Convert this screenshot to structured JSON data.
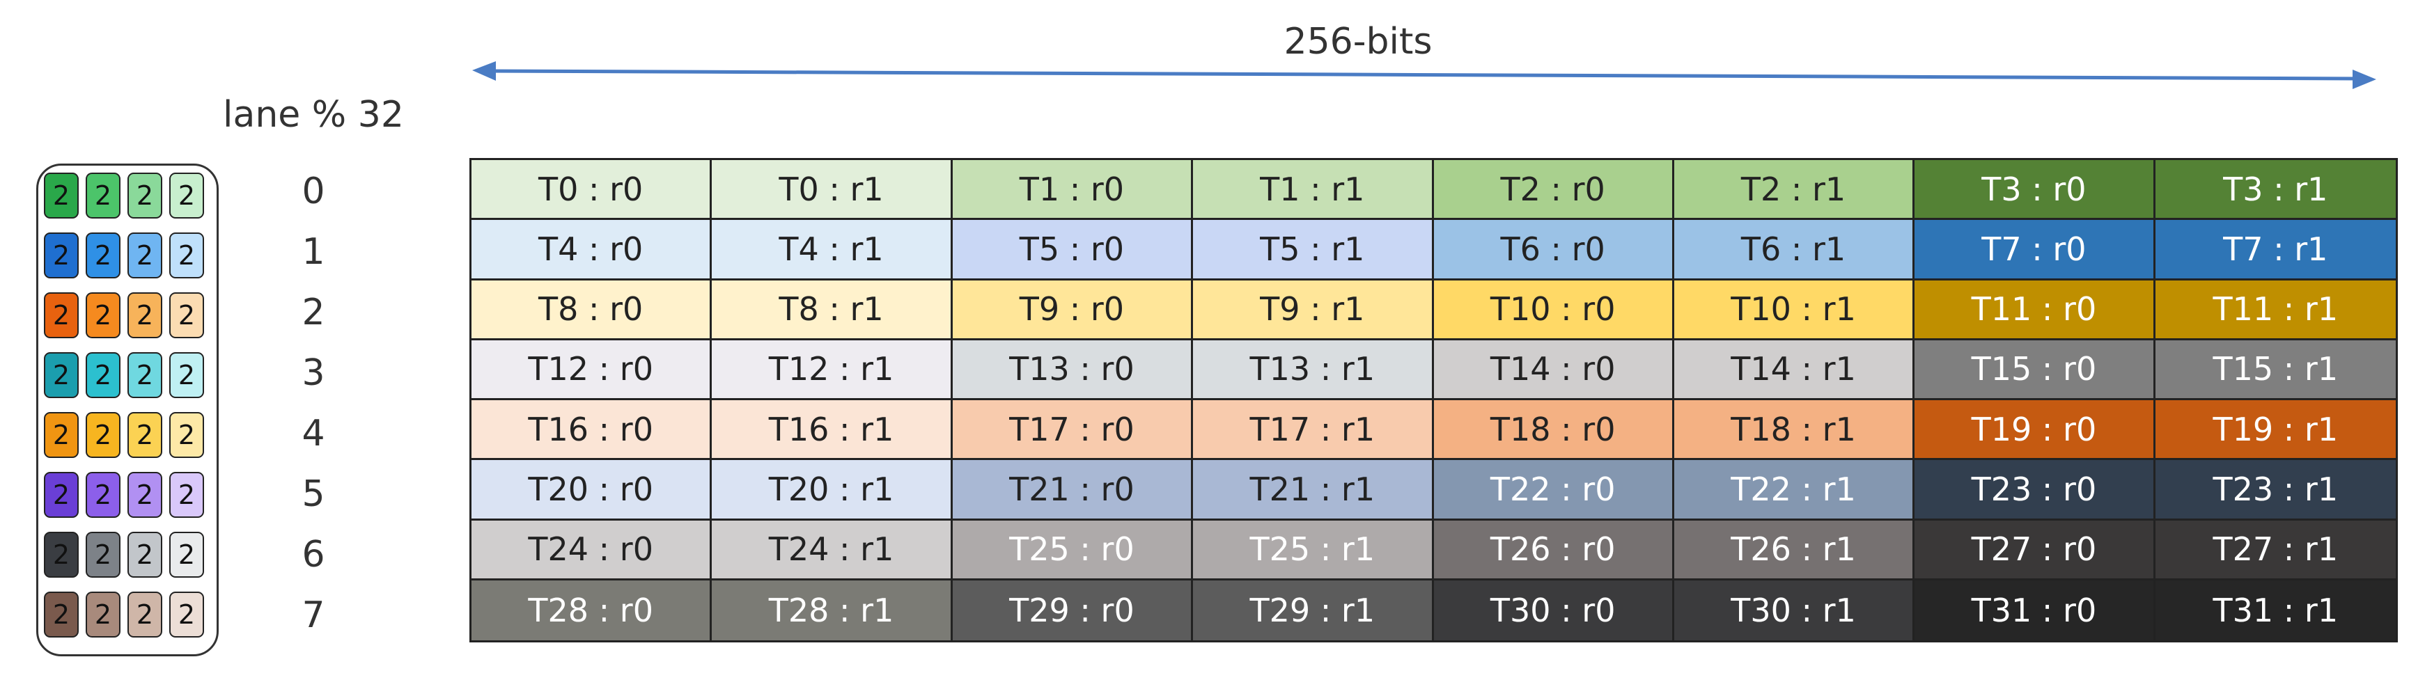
{
  "header": {
    "bits_label": "256-bits",
    "lane_label": "lane % 32"
  },
  "rows": [
    {
      "row": "0",
      "legend": [
        "2",
        "2",
        "2",
        "2"
      ],
      "cells": [
        "T0 : r0",
        "T0 : r1",
        "T1 : r0",
        "T1 : r1",
        "T2 : r0",
        "T2 : r1",
        "T3 : r0",
        "T3 : r1"
      ]
    },
    {
      "row": "1",
      "legend": [
        "2",
        "2",
        "2",
        "2"
      ],
      "cells": [
        "T4 : r0",
        "T4 : r1",
        "T5 : r0",
        "T5 : r1",
        "T6 : r0",
        "T6 : r1",
        "T7 : r0",
        "T7 : r1"
      ]
    },
    {
      "row": "2",
      "legend": [
        "2",
        "2",
        "2",
        "2"
      ],
      "cells": [
        "T8 : r0",
        "T8 : r1",
        "T9 : r0",
        "T9 : r1",
        "T10 : r0",
        "T10 : r1",
        "T11 : r0",
        "T11 : r1"
      ]
    },
    {
      "row": "3",
      "legend": [
        "2",
        "2",
        "2",
        "2"
      ],
      "cells": [
        "T12 : r0",
        "T12 : r1",
        "T13 : r0",
        "T13 : r1",
        "T14 : r0",
        "T14 : r1",
        "T15 : r0",
        "T15 : r1"
      ]
    },
    {
      "row": "4",
      "legend": [
        "2",
        "2",
        "2",
        "2"
      ],
      "cells": [
        "T16 : r0",
        "T16 : r1",
        "T17 : r0",
        "T17 : r1",
        "T18 : r0",
        "T18 : r1",
        "T19 : r0",
        "T19 : r1"
      ]
    },
    {
      "row": "5",
      "legend": [
        "2",
        "2",
        "2",
        "2"
      ],
      "cells": [
        "T20 : r0",
        "T20 : r1",
        "T21 : r0",
        "T21 : r1",
        "T22 : r0",
        "T22 : r1",
        "T23 : r0",
        "T23 : r1"
      ]
    },
    {
      "row": "6",
      "legend": [
        "2",
        "2",
        "2",
        "2"
      ],
      "cells": [
        "T24 : r0",
        "T24 : r1",
        "T25 : r0",
        "T25 : r1",
        "T26 : r0",
        "T26 : r1",
        "T27 : r0",
        "T27 : r1"
      ]
    },
    {
      "row": "7",
      "legend": [
        "2",
        "2",
        "2",
        "2"
      ],
      "cells": [
        "T28 : r0",
        "T28 : r1",
        "T29 : r0",
        "T29 : r1",
        "T30 : r0",
        "T30 : r1",
        "T31 : r0",
        "T31 : r1"
      ]
    }
  ],
  "colors": {
    "arrow": "#4a7cc4",
    "cell_shades": [
      [
        "#e2efda",
        "#c6e0b4",
        "#a9d08e",
        "#548235"
      ],
      [
        "#ddebf7",
        "#c9d7f5",
        "#9bc2e6",
        "#2e75b6"
      ],
      [
        "#fff2cc",
        "#ffe699",
        "#ffd966",
        "#bf8f00"
      ],
      [
        "#eeecf1",
        "#d9dde0",
        "#d0cece",
        "#7f7f7f"
      ],
      [
        "#fbe5d6",
        "#f8cbad",
        "#f4b183",
        "#c55a11"
      ],
      [
        "#dae3f3",
        "#a9b8d4",
        "#8497b0",
        "#323f4f"
      ],
      [
        "#d0cece",
        "#aeaaaa",
        "#767171",
        "#3a3838"
      ],
      [
        "#7b7b75",
        "#5c5c5c",
        "#3b3b3d",
        "#262626"
      ]
    ],
    "cell_text": [
      [
        "#222",
        "#222",
        "#222",
        "#ffffff"
      ],
      [
        "#222",
        "#222",
        "#222",
        "#ffffff"
      ],
      [
        "#222",
        "#222",
        "#222",
        "#ffffff"
      ],
      [
        "#222",
        "#222",
        "#222",
        "#ffffff"
      ],
      [
        "#222",
        "#222",
        "#222",
        "#ffffff"
      ],
      [
        "#222",
        "#222",
        "#ffffff",
        "#ffffff"
      ],
      [
        "#222",
        "#ffffff",
        "#ffffff",
        "#ffffff"
      ],
      [
        "#ffffff",
        "#ffffff",
        "#ffffff",
        "#ffffff"
      ]
    ],
    "legend_shades": [
      [
        "#2aa84a",
        "#4cc46a",
        "#8ad99a",
        "#c8efce"
      ],
      [
        "#1f6fd0",
        "#2f90e6",
        "#6fb5f2",
        "#bfe0fb"
      ],
      [
        "#e8620f",
        "#f58a1f",
        "#f7b35a",
        "#fbdcb2"
      ],
      [
        "#1b9eae",
        "#2cc0cf",
        "#6fd8e0",
        "#bff0f3"
      ],
      [
        "#f09512",
        "#f7b520",
        "#fbd253",
        "#fde9a7"
      ],
      [
        "#6a3fd6",
        "#8c5fea",
        "#b190f2",
        "#d9c8fa"
      ],
      [
        "#3a3d42",
        "#7d8288",
        "#c2c6ca",
        "#e9ebec"
      ],
      [
        "#7a5a4d",
        "#a88a7c",
        "#cfb6a8",
        "#ecded6"
      ]
    ]
  }
}
